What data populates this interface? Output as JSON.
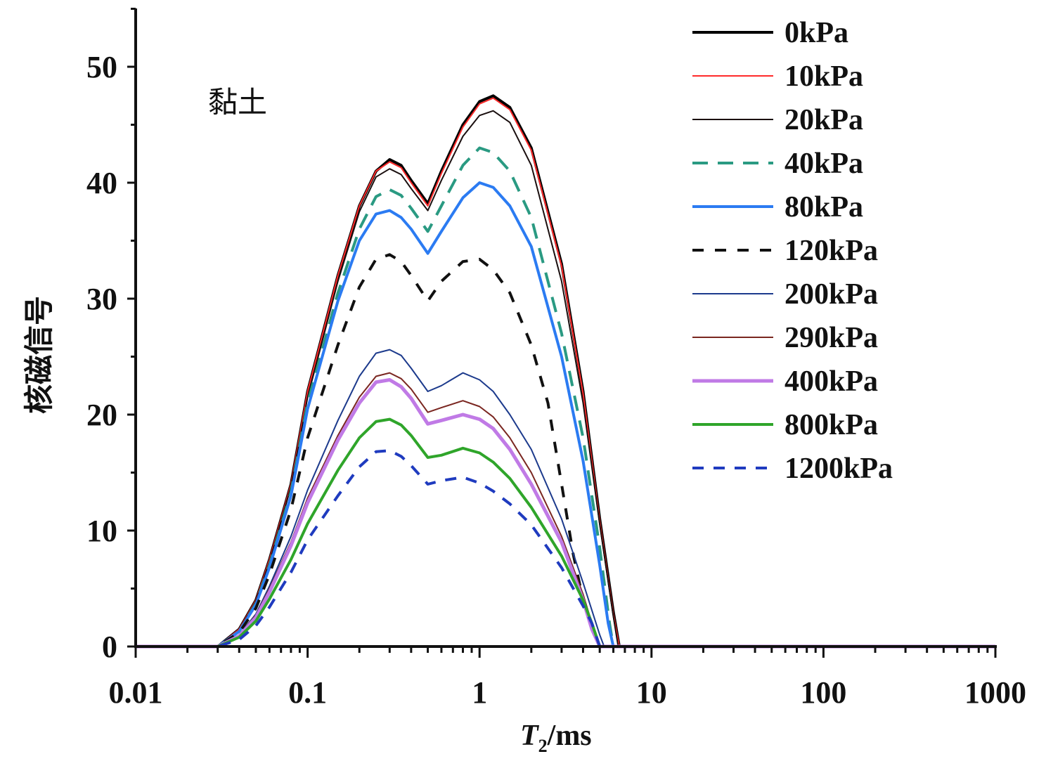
{
  "chart_data": {
    "type": "line",
    "title": "",
    "annotation": "黏土",
    "xlabel": {
      "italic": "T",
      "sub": "2",
      "rest": "/ms"
    },
    "ylabel": "核磁信号",
    "x_scale": "log",
    "xlim": [
      0.01,
      1000
    ],
    "ylim": [
      0,
      55
    ],
    "x_ticks": [
      0.01,
      0.1,
      1,
      10,
      100,
      1000
    ],
    "x_tick_labels": [
      "0.01",
      "0.1",
      "1",
      "10",
      "100",
      "1000"
    ],
    "y_ticks": [
      0,
      10,
      20,
      30,
      40,
      50
    ],
    "y_tick_labels": [
      "0",
      "10",
      "20",
      "30",
      "40",
      "50"
    ],
    "grid": false,
    "legend_position": "top-right",
    "series": [
      {
        "name": "0kPa",
        "color": "#000000",
        "dash": "solid",
        "width": 4,
        "points": [
          [
            0.01,
            0
          ],
          [
            0.03,
            0
          ],
          [
            0.04,
            1.5
          ],
          [
            0.05,
            4
          ],
          [
            0.06,
            7.5
          ],
          [
            0.08,
            14
          ],
          [
            0.1,
            22
          ],
          [
            0.15,
            32
          ],
          [
            0.2,
            38
          ],
          [
            0.25,
            41
          ],
          [
            0.3,
            42
          ],
          [
            0.35,
            41.5
          ],
          [
            0.4,
            40.2
          ],
          [
            0.5,
            38.2
          ],
          [
            0.6,
            41
          ],
          [
            0.8,
            45
          ],
          [
            1.0,
            47
          ],
          [
            1.2,
            47.5
          ],
          [
            1.5,
            46.5
          ],
          [
            2.0,
            43
          ],
          [
            3.0,
            33
          ],
          [
            4.0,
            22
          ],
          [
            5.0,
            11
          ],
          [
            6.0,
            3
          ],
          [
            6.5,
            0
          ],
          [
            1000,
            0
          ]
        ]
      },
      {
        "name": "10kPa",
        "color": "#ff2a2a",
        "dash": "solid",
        "width": 2,
        "points": [
          [
            0.01,
            0
          ],
          [
            0.03,
            0
          ],
          [
            0.04,
            1.5
          ],
          [
            0.05,
            4
          ],
          [
            0.06,
            7.5
          ],
          [
            0.08,
            14
          ],
          [
            0.1,
            22
          ],
          [
            0.15,
            32
          ],
          [
            0.2,
            38
          ],
          [
            0.25,
            41
          ],
          [
            0.3,
            41.8
          ],
          [
            0.35,
            41.3
          ],
          [
            0.4,
            40
          ],
          [
            0.5,
            38
          ],
          [
            0.6,
            40.8
          ],
          [
            0.8,
            44.8
          ],
          [
            1.0,
            46.8
          ],
          [
            1.2,
            47.3
          ],
          [
            1.5,
            46.3
          ],
          [
            2.0,
            42.8
          ],
          [
            3.0,
            32.8
          ],
          [
            4.0,
            21.8
          ],
          [
            5.0,
            10.8
          ],
          [
            6.0,
            2.8
          ],
          [
            6.5,
            0
          ],
          [
            1000,
            0
          ]
        ]
      },
      {
        "name": "20kPa",
        "color": "#1a0f0f",
        "dash": "solid",
        "width": 2,
        "points": [
          [
            0.01,
            0
          ],
          [
            0.03,
            0
          ],
          [
            0.04,
            1.4
          ],
          [
            0.05,
            3.9
          ],
          [
            0.06,
            7.3
          ],
          [
            0.08,
            13.8
          ],
          [
            0.1,
            21.5
          ],
          [
            0.15,
            31.5
          ],
          [
            0.2,
            37.5
          ],
          [
            0.25,
            40.5
          ],
          [
            0.3,
            41.2
          ],
          [
            0.35,
            40.7
          ],
          [
            0.4,
            39.5
          ],
          [
            0.5,
            37.6
          ],
          [
            0.6,
            40.2
          ],
          [
            0.8,
            44
          ],
          [
            1.0,
            45.8
          ],
          [
            1.2,
            46.2
          ],
          [
            1.5,
            45.2
          ],
          [
            2.0,
            41.5
          ],
          [
            3.0,
            31.5
          ],
          [
            4.0,
            21
          ],
          [
            5.0,
            10.5
          ],
          [
            6.0,
            2.6
          ],
          [
            6.4,
            0
          ],
          [
            1000,
            0
          ]
        ]
      },
      {
        "name": "40kPa",
        "color": "#2a9a82",
        "dash": "22,14",
        "width": 4,
        "points": [
          [
            0.01,
            0
          ],
          [
            0.03,
            0
          ],
          [
            0.04,
            1.3
          ],
          [
            0.05,
            3.7
          ],
          [
            0.06,
            7
          ],
          [
            0.08,
            13.3
          ],
          [
            0.1,
            21
          ],
          [
            0.15,
            30.5
          ],
          [
            0.2,
            36
          ],
          [
            0.25,
            38.8
          ],
          [
            0.3,
            39.4
          ],
          [
            0.35,
            38.9
          ],
          [
            0.4,
            37.8
          ],
          [
            0.5,
            35.8
          ],
          [
            0.6,
            38
          ],
          [
            0.8,
            41.5
          ],
          [
            1.0,
            43
          ],
          [
            1.2,
            42.6
          ],
          [
            1.5,
            41
          ],
          [
            2.0,
            37
          ],
          [
            3.0,
            27
          ],
          [
            4.0,
            18
          ],
          [
            5.0,
            8.5
          ],
          [
            5.7,
            2
          ],
          [
            6.0,
            0
          ],
          [
            1000,
            0
          ]
        ]
      },
      {
        "name": "80kPa",
        "color": "#2b7bf2",
        "dash": "solid",
        "width": 4,
        "points": [
          [
            0.01,
            0
          ],
          [
            0.03,
            0
          ],
          [
            0.04,
            1.3
          ],
          [
            0.05,
            3.6
          ],
          [
            0.06,
            6.8
          ],
          [
            0.08,
            13
          ],
          [
            0.1,
            20.5
          ],
          [
            0.15,
            29.8
          ],
          [
            0.2,
            35
          ],
          [
            0.25,
            37.3
          ],
          [
            0.3,
            37.6
          ],
          [
            0.35,
            37
          ],
          [
            0.4,
            36
          ],
          [
            0.5,
            33.9
          ],
          [
            0.6,
            35.8
          ],
          [
            0.8,
            38.7
          ],
          [
            1.0,
            40
          ],
          [
            1.2,
            39.6
          ],
          [
            1.5,
            38
          ],
          [
            2.0,
            34.5
          ],
          [
            3.0,
            25
          ],
          [
            4.0,
            16
          ],
          [
            5.0,
            7
          ],
          [
            5.6,
            2
          ],
          [
            6.0,
            0
          ],
          [
            1000,
            0
          ]
        ]
      },
      {
        "name": "120kPa",
        "color": "#111111",
        "dash": "16,16",
        "width": 4,
        "points": [
          [
            0.01,
            0
          ],
          [
            0.03,
            0
          ],
          [
            0.04,
            1.2
          ],
          [
            0.05,
            3.3
          ],
          [
            0.06,
            6.2
          ],
          [
            0.08,
            11.8
          ],
          [
            0.1,
            18
          ],
          [
            0.15,
            26
          ],
          [
            0.2,
            31
          ],
          [
            0.25,
            33.4
          ],
          [
            0.3,
            33.8
          ],
          [
            0.35,
            33.2
          ],
          [
            0.4,
            32
          ],
          [
            0.5,
            29.8
          ],
          [
            0.6,
            31.5
          ],
          [
            0.8,
            33.2
          ],
          [
            1.0,
            33.4
          ],
          [
            1.2,
            32.5
          ],
          [
            1.5,
            30.5
          ],
          [
            2.0,
            26
          ],
          [
            2.5,
            21
          ],
          [
            3.0,
            14
          ],
          [
            3.5,
            8
          ],
          [
            4.0,
            4
          ],
          [
            4.5,
            1.5
          ],
          [
            5.0,
            0
          ],
          [
            1000,
            0
          ]
        ]
      },
      {
        "name": "200kPa",
        "color": "#1c3a8c",
        "dash": "solid",
        "width": 2,
        "points": [
          [
            0.01,
            0
          ],
          [
            0.03,
            0
          ],
          [
            0.04,
            1
          ],
          [
            0.05,
            2.8
          ],
          [
            0.06,
            5.2
          ],
          [
            0.08,
            9.5
          ],
          [
            0.1,
            13.5
          ],
          [
            0.15,
            19.5
          ],
          [
            0.2,
            23.3
          ],
          [
            0.25,
            25.3
          ],
          [
            0.3,
            25.6
          ],
          [
            0.35,
            25.1
          ],
          [
            0.4,
            24
          ],
          [
            0.5,
            22
          ],
          [
            0.6,
            22.5
          ],
          [
            0.8,
            23.6
          ],
          [
            1.0,
            23
          ],
          [
            1.2,
            22
          ],
          [
            1.5,
            20
          ],
          [
            2.0,
            17
          ],
          [
            3.0,
            11
          ],
          [
            4.0,
            5.5
          ],
          [
            5.0,
            1
          ],
          [
            5.3,
            0
          ],
          [
            1000,
            0
          ]
        ]
      },
      {
        "name": "290kPa",
        "color": "#7a2620",
        "dash": "solid",
        "width": 2,
        "points": [
          [
            0.01,
            0
          ],
          [
            0.03,
            0
          ],
          [
            0.04,
            1
          ],
          [
            0.05,
            2.7
          ],
          [
            0.06,
            5
          ],
          [
            0.08,
            9
          ],
          [
            0.1,
            12.8
          ],
          [
            0.15,
            18.2
          ],
          [
            0.2,
            21.5
          ],
          [
            0.25,
            23.3
          ],
          [
            0.3,
            23.6
          ],
          [
            0.35,
            23.1
          ],
          [
            0.4,
            22.2
          ],
          [
            0.5,
            20.2
          ],
          [
            0.6,
            20.6
          ],
          [
            0.8,
            21.2
          ],
          [
            1.0,
            20.7
          ],
          [
            1.2,
            19.8
          ],
          [
            1.5,
            18
          ],
          [
            2.0,
            15
          ],
          [
            3.0,
            9.5
          ],
          [
            4.0,
            4.5
          ],
          [
            4.5,
            2
          ],
          [
            5.0,
            0
          ],
          [
            1000,
            0
          ]
        ]
      },
      {
        "name": "400kPa",
        "color": "#c07ae6",
        "dash": "solid",
        "width": 5,
        "points": [
          [
            0.01,
            0
          ],
          [
            0.03,
            0
          ],
          [
            0.04,
            0.9
          ],
          [
            0.05,
            2.5
          ],
          [
            0.06,
            4.7
          ],
          [
            0.08,
            8.7
          ],
          [
            0.1,
            12.4
          ],
          [
            0.15,
            17.8
          ],
          [
            0.2,
            21
          ],
          [
            0.25,
            22.8
          ],
          [
            0.3,
            23
          ],
          [
            0.35,
            22.4
          ],
          [
            0.4,
            21.4
          ],
          [
            0.5,
            19.2
          ],
          [
            0.6,
            19.5
          ],
          [
            0.8,
            20
          ],
          [
            1.0,
            19.6
          ],
          [
            1.2,
            18.8
          ],
          [
            1.5,
            17
          ],
          [
            2.0,
            14
          ],
          [
            3.0,
            9
          ],
          [
            4.0,
            4
          ],
          [
            4.5,
            1.5
          ],
          [
            5.0,
            0
          ],
          [
            1000,
            0
          ]
        ]
      },
      {
        "name": "800kPa",
        "color": "#2fa52a",
        "dash": "solid",
        "width": 4,
        "points": [
          [
            0.01,
            0
          ],
          [
            0.03,
            0
          ],
          [
            0.04,
            0.8
          ],
          [
            0.05,
            2.2
          ],
          [
            0.06,
            4.1
          ],
          [
            0.08,
            7.5
          ],
          [
            0.1,
            10.6
          ],
          [
            0.15,
            15.2
          ],
          [
            0.2,
            18
          ],
          [
            0.25,
            19.4
          ],
          [
            0.3,
            19.6
          ],
          [
            0.35,
            19.1
          ],
          [
            0.4,
            18.2
          ],
          [
            0.5,
            16.3
          ],
          [
            0.6,
            16.5
          ],
          [
            0.8,
            17.1
          ],
          [
            1.0,
            16.7
          ],
          [
            1.2,
            15.9
          ],
          [
            1.5,
            14.5
          ],
          [
            2.0,
            12
          ],
          [
            3.0,
            7.8
          ],
          [
            4.0,
            4
          ],
          [
            4.5,
            2
          ],
          [
            5.0,
            0
          ],
          [
            1000,
            0
          ]
        ]
      },
      {
        "name": "1200kPa",
        "color": "#1f3bbf",
        "dash": "16,14",
        "width": 4,
        "points": [
          [
            0.01,
            0
          ],
          [
            0.03,
            0
          ],
          [
            0.04,
            0.6
          ],
          [
            0.05,
            1.8
          ],
          [
            0.06,
            3.4
          ],
          [
            0.08,
            6.4
          ],
          [
            0.1,
            9.2
          ],
          [
            0.15,
            13
          ],
          [
            0.2,
            15.5
          ],
          [
            0.25,
            16.8
          ],
          [
            0.3,
            16.9
          ],
          [
            0.35,
            16.4
          ],
          [
            0.4,
            15.6
          ],
          [
            0.5,
            14
          ],
          [
            0.6,
            14.3
          ],
          [
            0.8,
            14.6
          ],
          [
            1.0,
            14.1
          ],
          [
            1.2,
            13.4
          ],
          [
            1.5,
            12.3
          ],
          [
            2.0,
            10.5
          ],
          [
            3.0,
            6.8
          ],
          [
            4.0,
            3.5
          ],
          [
            4.5,
            2
          ],
          [
            5.0,
            0
          ],
          [
            1000,
            0
          ]
        ]
      }
    ]
  }
}
